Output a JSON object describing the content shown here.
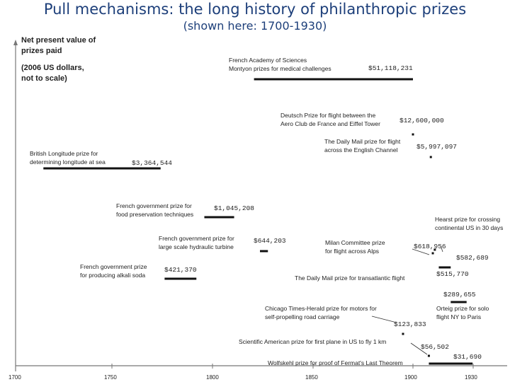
{
  "title": "Pull mechanisms: the long history of philanthropic prizes",
  "subtitle": "(shown here: 1700-1930)",
  "chart_data": {
    "type": "timeline",
    "ylabel": [
      "Net present value of",
      "prizes paid"
    ],
    "ylabel_note": [
      "(2006 US dollars,",
      "not to scale)"
    ],
    "xticks": [
      "1700",
      "1750",
      "1800",
      "1850",
      "1900",
      "1930"
    ],
    "xlim": [
      1700,
      1930
    ],
    "prizes": [
      {
        "label": [
          "French Academy of Sciences",
          "Montyon prizes for medical challenges"
        ],
        "value": "$51,118,231",
        "start": 1820,
        "end": 1900,
        "level": 8
      },
      {
        "label": [
          "Deutsch Prize for flight between the",
          "Aero Club de France and Eiffel Tower"
        ],
        "value": "$12,600,000",
        "start": 1900,
        "end": 1901,
        "level": 7
      },
      {
        "label": [
          "The Daily Mail prize for flight",
          "across the English Channel"
        ],
        "value": "$5,997,097",
        "start": 1909,
        "end": 1909,
        "level": 6
      },
      {
        "label": [
          "British Longitude prize for",
          "determining longitude at sea"
        ],
        "value": "$3,364,544",
        "start": 1714,
        "end": 1773,
        "level": 5
      },
      {
        "label": [
          "French government prize for",
          "food preservation techniques"
        ],
        "value": "$1,045,208",
        "start": 1795,
        "end": 1810,
        "level": 4
      },
      {
        "label": [
          "French government prize for",
          "large scale hydraulic turbine"
        ],
        "value": "$644,203",
        "start": 1823,
        "end": 1827,
        "level": 3
      },
      {
        "label": [
          "Hearst prize for crossing",
          "continental US in 30 days"
        ],
        "value": "$582,689",
        "start": 1911,
        "end": 1911,
        "level": 3
      },
      {
        "label": [
          "Milan Committee prize",
          "for flight across Alps"
        ],
        "value": "$618,956",
        "start": 1910,
        "end": 1910,
        "level": 3
      },
      {
        "label": [
          "French government prize",
          "for producing alkali soda"
        ],
        "value": "$421,370",
        "start": 1775,
        "end": 1791,
        "level": 2
      },
      {
        "label": [
          "The Daily Mail prize for transatlantic flight"
        ],
        "value": "$515,770",
        "start": 1913,
        "end": 1919,
        "level": 2
      },
      {
        "label": [
          "Orteig prize for solo",
          "flight NY to Paris"
        ],
        "value": "$289,655",
        "start": 1919,
        "end": 1927,
        "level": 1
      },
      {
        "label": [
          "Chicago Times-Herald prize for motors for",
          "self-propelling road carriage"
        ],
        "value": "$123,833",
        "start": 1895,
        "end": 1895,
        "level": 1
      },
      {
        "label": [
          "Scientific American prize for first plane in US to fly 1 km"
        ],
        "value": "$56,502",
        "start": 1908,
        "end": 1908,
        "level": 0
      },
      {
        "label": [
          "Wolfskehl prize for proof of Fermat's Last Theorem"
        ],
        "value": "$31,690",
        "start": 1908,
        "end": 1930,
        "level": 0
      }
    ]
  }
}
